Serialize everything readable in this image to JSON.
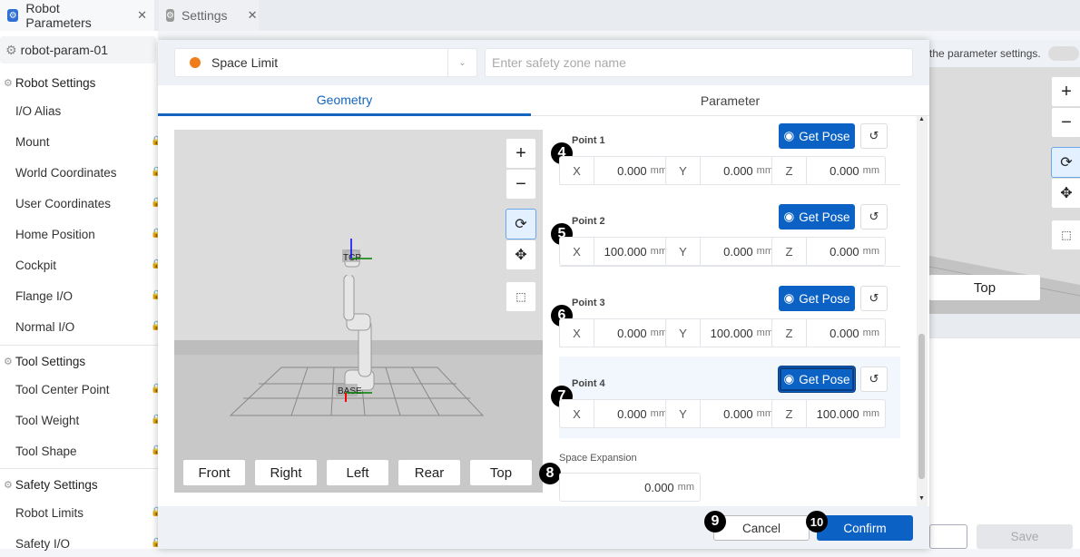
{
  "tabs": [
    {
      "label": "Robot Parameters",
      "icon": "robot-icon"
    },
    {
      "label": "Settings",
      "icon": "gear-icon"
    }
  ],
  "sidebar": {
    "robot": "robot-param-01",
    "sections": [
      {
        "title": "Robot Settings",
        "items": [
          "I/O Alias",
          "Mount",
          "World Coordinates",
          "User Coordinates",
          "Home Position",
          "Cockpit",
          "Flange I/O",
          "Normal I/O"
        ]
      },
      {
        "title": "Tool Settings",
        "items": [
          "Tool Center Point",
          "Tool Weight",
          "Tool Shape"
        ]
      },
      {
        "title": "Safety Settings",
        "items": [
          "Robot Limits",
          "Safety I/O"
        ]
      }
    ]
  },
  "background": {
    "notice": "the parameter settings.",
    "view_top": "Top",
    "save": "Save"
  },
  "modal": {
    "zone_type": "Space Limit",
    "zone_color": "#f07c1b",
    "name_placeholder": "Enter safety zone name",
    "tabs": [
      "Geometry",
      "Parameter"
    ],
    "active_tab": "Geometry",
    "viewport": {
      "tcp_label": "TCP",
      "base_label": "BASE",
      "views": [
        "Front",
        "Right",
        "Left",
        "Rear",
        "Top"
      ]
    },
    "get_pose": "Get Pose",
    "unit": "mm",
    "points": [
      {
        "label": "Point 1",
        "badge": "4",
        "x": "0.000",
        "y": "0.000",
        "z": "0.000"
      },
      {
        "label": "Point 2",
        "badge": "5",
        "x": "100.000",
        "y": "0.000",
        "z": "0.000"
      },
      {
        "label": "Point 3",
        "badge": "6",
        "x": "0.000",
        "y": "100.000",
        "z": "0.000"
      },
      {
        "label": "Point 4",
        "badge": "7",
        "x": "0.000",
        "y": "0.000",
        "z": "100.000"
      }
    ],
    "axes": [
      "X",
      "Y",
      "Z"
    ],
    "space_expansion": {
      "label": "Space Expansion",
      "value": "0.000",
      "badge": "8"
    },
    "cancel": "Cancel",
    "cancel_badge": "9",
    "confirm": "Confirm",
    "confirm_badge": "10"
  },
  "colors": {
    "accent": "#0b62c4"
  }
}
